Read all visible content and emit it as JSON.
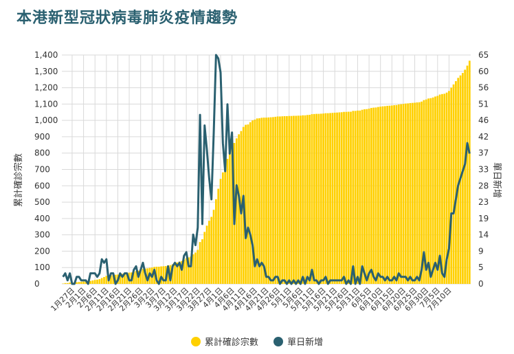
{
  "title": "本港新型冠狀病毒肺炎疫情趨勢",
  "colors": {
    "cumulative": "#ffd000",
    "daily": "#2a6070",
    "grid": "#d9d9d9"
  },
  "legend": {
    "cumulative": "累計確診宗數",
    "daily": "單日新增"
  },
  "chart_data": {
    "type": "bar",
    "title": "本港新型冠狀病毒肺炎疫情趨勢",
    "x_tick_labels": [
      "1月27日",
      "2月1日",
      "2月6日",
      "2月11日",
      "2月16日",
      "2月21日",
      "2月26日",
      "3月2日",
      "3月7日",
      "3月12日",
      "3月17日",
      "3月22日",
      "3月27日",
      "4月1日",
      "4月6日",
      "4月11日",
      "4月16日",
      "4月21日",
      "4月26日",
      "5月1日",
      "5月6日",
      "5月11日",
      "5月16日",
      "5月21日",
      "5月26日",
      "5月31日",
      "6月5日",
      "6月10日",
      "6月15日",
      "6月20日",
      "6月25日",
      "6月30日",
      "7月5日",
      "7月10日"
    ],
    "y_left": {
      "label": "累計確診宗數",
      "ticks": [
        0,
        100,
        200,
        300,
        400,
        500,
        600,
        700,
        800,
        900,
        1000,
        1100,
        1200,
        1300,
        1400
      ],
      "tick_labels": [
        "0",
        "100",
        "200",
        "300",
        "400",
        "500",
        "600",
        "700",
        "800",
        "900",
        "1,000",
        "1,100",
        "1,200",
        "1,300",
        "1,400"
      ],
      "range": [
        0,
        1400
      ]
    },
    "y_right": {
      "label": "單日新增",
      "ticks": [
        0,
        5,
        9,
        14,
        19,
        23,
        28,
        33,
        37,
        42,
        46,
        51,
        56,
        60,
        65
      ],
      "range": [
        0,
        65
      ]
    },
    "grid": true,
    "legend_position": "bottom",
    "series": [
      {
        "name": "累計確診宗數",
        "type": "bar",
        "axis": "left",
        "start_date": "1月23日",
        "values": [
          2,
          5,
          5,
          8,
          8,
          8,
          10,
          12,
          13,
          14,
          15,
          15,
          18,
          21,
          24,
          26,
          29,
          36,
          42,
          49,
          50,
          53,
          56,
          56,
          57,
          60,
          62,
          65,
          68,
          69,
          70,
          74,
          79,
          81,
          85,
          91,
          94,
          95,
          98,
          100,
          104,
          105,
          105,
          107,
          108,
          109,
          114,
          115,
          120,
          126,
          131,
          137,
          140,
          148,
          157,
          162,
          167,
          181,
          192,
          208,
          256,
          273,
          318,
          356,
          386,
          410,
          453,
          518,
          582,
          642,
          682,
          714,
          765,
          802,
          845,
          862,
          890,
          915,
          935,
          960,
          973,
          975,
          989,
          1000,
          1005,
          1012,
          1013,
          1016,
          1017,
          1017,
          1018,
          1019,
          1020,
          1022,
          1024,
          1024,
          1025,
          1026,
          1026,
          1027,
          1027,
          1028,
          1028,
          1029,
          1029,
          1031,
          1031,
          1033,
          1034,
          1038,
          1039,
          1040,
          1040,
          1041,
          1042,
          1044,
          1044,
          1045,
          1046,
          1047,
          1048,
          1049,
          1050,
          1052,
          1052,
          1053,
          1053,
          1058,
          1058,
          1060,
          1060,
          1065,
          1068,
          1069,
          1072,
          1076,
          1078,
          1079,
          1082,
          1084,
          1086,
          1087,
          1089,
          1090,
          1091,
          1093,
          1094,
          1097,
          1099,
          1101,
          1103,
          1104,
          1106,
          1107,
          1108,
          1110,
          1111,
          1115,
          1124,
          1128,
          1134,
          1136,
          1140,
          1146,
          1150,
          1158,
          1161,
          1163,
          1170,
          1180,
          1200,
          1220,
          1240,
          1260,
          1275,
          1290,
          1310,
          1335,
          1365
        ]
      },
      {
        "name": "單日新增",
        "type": "line",
        "axis": "right",
        "start_date": "1月23日",
        "values": [
          2,
          3,
          1,
          3,
          0,
          0,
          2,
          2,
          1,
          1,
          1,
          0,
          3,
          3,
          3,
          2,
          3,
          7,
          6,
          7,
          1,
          3,
          3,
          0,
          1,
          3,
          2,
          3,
          3,
          1,
          1,
          4,
          5,
          2,
          4,
          6,
          3,
          1,
          3,
          2,
          4,
          1,
          0,
          2,
          1,
          1,
          5,
          1,
          5,
          6,
          5,
          6,
          4,
          8,
          9,
          5,
          5,
          14,
          11,
          16,
          48,
          17,
          45,
          38,
          30,
          24,
          43,
          65,
          64,
          60,
          40,
          32,
          51,
          37,
          43,
          17,
          28,
          25,
          20,
          25,
          13,
          16,
          14,
          11,
          5,
          7,
          5,
          6,
          5,
          2,
          2,
          1,
          1,
          2,
          2,
          0,
          1,
          1,
          0,
          1,
          0,
          1,
          0,
          1,
          0,
          2,
          0,
          2,
          1,
          4,
          1,
          1,
          0,
          1,
          1,
          2,
          0,
          1,
          1,
          1,
          1,
          1,
          1,
          2,
          0,
          1,
          0,
          5,
          0,
          2,
          0,
          5,
          3,
          1,
          3,
          4,
          2,
          1,
          3,
          2,
          2,
          1,
          2,
          1,
          1,
          2,
          1,
          3,
          2,
          2,
          2,
          1,
          2,
          1,
          1,
          2,
          1,
          4,
          9,
          4,
          6,
          2,
          4,
          6,
          4,
          8,
          3,
          2,
          7,
          10,
          20,
          20,
          24,
          28,
          30,
          32,
          34,
          40,
          37
        ]
      }
    ]
  }
}
